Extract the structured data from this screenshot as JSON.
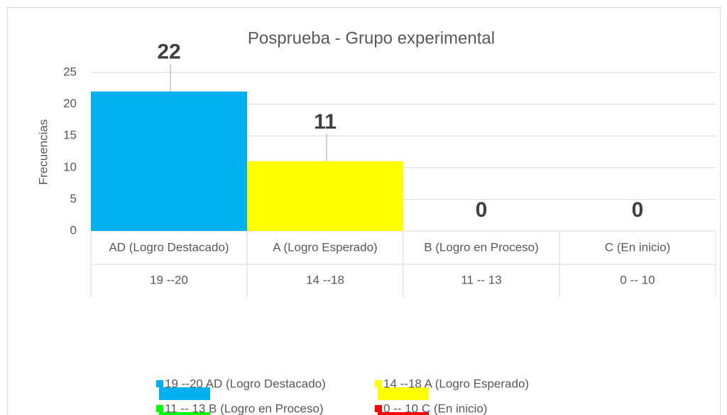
{
  "chart_data": {
    "type": "bar",
    "title": "Posprueba - Grupo experimental",
    "y_label": "Frecuencias",
    "categories": [
      "AD (Logro Destacado)",
      "A (Logro Esperado)",
      "B (Logro en Proceso)",
      "C (En inicio)"
    ],
    "subcategories": [
      "19 --20",
      "14 --18",
      "11 -- 13",
      "0 -- 10"
    ],
    "values": [
      22,
      11,
      0,
      0
    ],
    "ylim": [
      0,
      25
    ],
    "yticks": [
      0,
      5,
      10,
      15,
      20,
      25
    ],
    "grid": true,
    "legend": [
      {
        "name": "19 --20 AD (Logro Destacado)",
        "color": "#00b0f0"
      },
      {
        "name": "14 --18 A (Logro Esperado)",
        "color": "#ffff00"
      },
      {
        "name": "11 -- 13 B (Logro en Proceso)",
        "color": "#00ff00"
      },
      {
        "name": "0 -- 10 C (En inicio)",
        "color": "#ff0000"
      }
    ]
  }
}
